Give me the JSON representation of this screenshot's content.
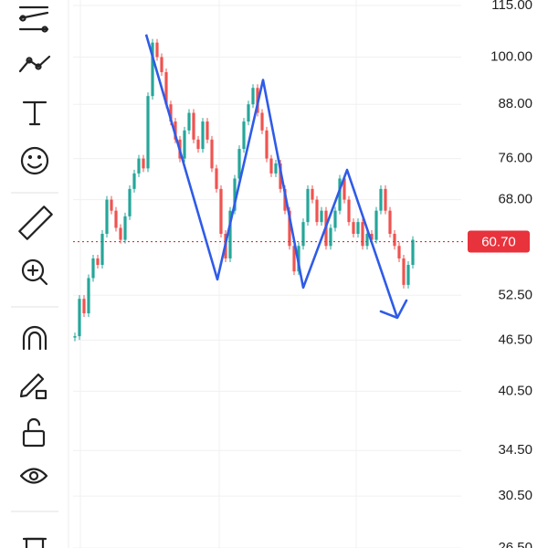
{
  "chart_data": {
    "type": "candlestick",
    "log_scale": true,
    "ylim": [
      26.5,
      116.7
    ],
    "yticks": [
      {
        "value": 115,
        "label": "115.00"
      },
      {
        "value": 100,
        "label": "100.00"
      },
      {
        "value": 88,
        "label": "88.00"
      },
      {
        "value": 76,
        "label": "76.00"
      },
      {
        "value": 68,
        "label": "68.00"
      },
      {
        "value": 52.5,
        "label": "52.50"
      },
      {
        "value": 46.5,
        "label": "46.50"
      },
      {
        "value": 40.5,
        "label": "40.50"
      },
      {
        "value": 34.5,
        "label": "34.50"
      },
      {
        "value": 30.5,
        "label": "30.50"
      },
      {
        "value": 26.5,
        "label": "26.50"
      }
    ],
    "grid": true,
    "up_color": "#26a69a",
    "down_color": "#ef5350",
    "closes": [
      47,
      52,
      50,
      55,
      58,
      57,
      62,
      68,
      66,
      63,
      61,
      65,
      70,
      73,
      76,
      74,
      90,
      104,
      100,
      96,
      88,
      84,
      80,
      76,
      82,
      86,
      80,
      78,
      84,
      80,
      74,
      70,
      62,
      58,
      66,
      72,
      78,
      84,
      88,
      92,
      86,
      82,
      76,
      73,
      75,
      70,
      66,
      60,
      56,
      60,
      64,
      70,
      68,
      64,
      66,
      60,
      63,
      66,
      72,
      68,
      64,
      62,
      64,
      60,
      62,
      61,
      66,
      70,
      66,
      62,
      60,
      58,
      54,
      57,
      61
    ],
    "current_price": {
      "value": 60.7,
      "label": "60.70",
      "color": "#e8323c"
    },
    "zigzag": {
      "color": "#2f5be8",
      "x": [
        15.6,
        31.2,
        41.2,
        50,
        59.6,
        70.6
      ],
      "values": [
        106.3,
        54.8,
        94.0,
        53.6,
        73.7,
        49.4
      ]
    }
  }
}
